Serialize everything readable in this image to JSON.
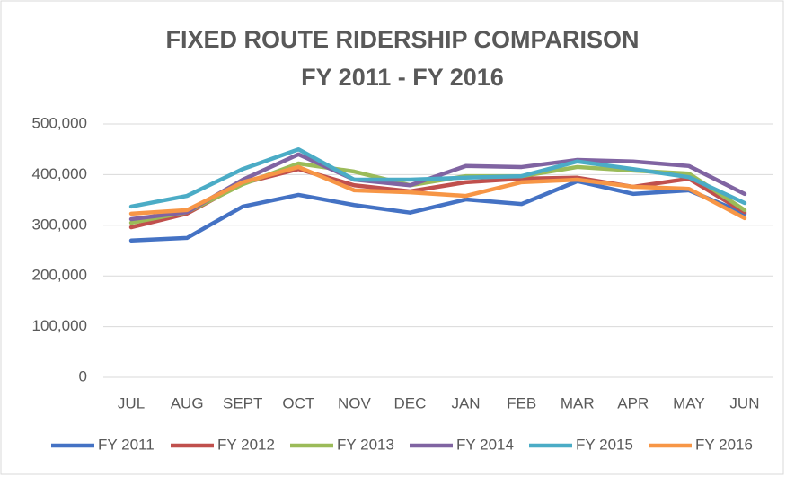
{
  "chart_data": {
    "type": "line",
    "title": [
      "FIXED ROUTE RIDERSHIP COMPARISON",
      "FY 2011 - FY 2016"
    ],
    "categories": [
      "JUL",
      "AUG",
      "SEPT",
      "OCT",
      "NOV",
      "DEC",
      "JAN",
      "FEB",
      "MAR",
      "APR",
      "MAY",
      "JUN"
    ],
    "series": [
      {
        "name": "FY 2011",
        "color": "#4472c4",
        "values": [
          270000,
          275000,
          337000,
          360000,
          340000,
          325000,
          351000,
          342000,
          387000,
          362000,
          369000,
          323000
        ]
      },
      {
        "name": "FY 2012",
        "color": "#c0504d",
        "values": [
          296000,
          323000,
          383000,
          411000,
          379000,
          367000,
          385000,
          392000,
          394000,
          376000,
          392000,
          326000
        ]
      },
      {
        "name": "FY 2013",
        "color": "#9bbb59",
        "values": [
          305000,
          326000,
          381000,
          422000,
          406000,
          379000,
          397000,
          397000,
          415000,
          408000,
          402000,
          330000
        ]
      },
      {
        "name": "FY 2014",
        "color": "#8064a2",
        "values": [
          312000,
          326000,
          390000,
          440000,
          390000,
          379000,
          417000,
          415000,
          429000,
          426000,
          417000,
          362000
        ]
      },
      {
        "name": "FY 2015",
        "color": "#4bacc6",
        "values": [
          337000,
          358000,
          411000,
          450000,
          390000,
          390000,
          394000,
          397000,
          426000,
          411000,
          395000,
          344000
        ]
      },
      {
        "name": "FY 2016",
        "color": "#f79646",
        "values": [
          323000,
          330000,
          385000,
          415000,
          369000,
          365000,
          358000,
          385000,
          390000,
          376000,
          372000,
          314000
        ]
      }
    ],
    "ylim": [
      0,
      500000
    ],
    "yticks": [
      0,
      {
        "value": 100000,
        "label": "100,000"
      },
      {
        "value": 200000,
        "label": "200,000"
      },
      {
        "value": 300000,
        "label": "300,000"
      },
      {
        "value": 400000,
        "label": "400,000"
      },
      {
        "value": 500000,
        "label": "500,000"
      }
    ],
    "grid": true,
    "legend": "bottom"
  }
}
